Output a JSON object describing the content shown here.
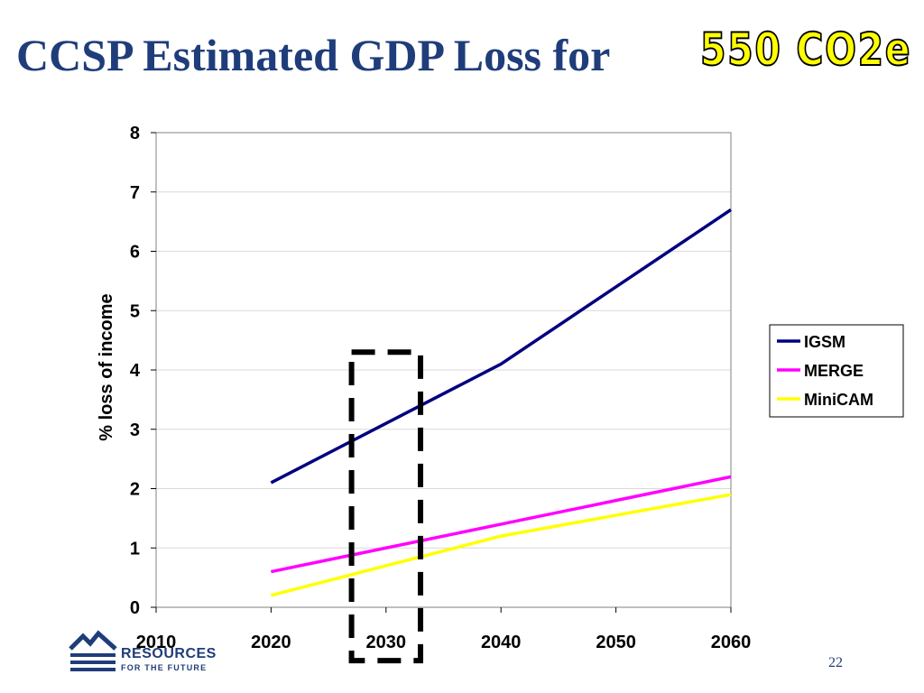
{
  "slide": {
    "title": "CCSP Estimated GDP Loss for",
    "title_highlight": "550 CO2e",
    "page_number": "22"
  },
  "logo": {
    "line1": "RESOURCES",
    "line2": "FOR THE FUTURE"
  },
  "colors": {
    "title": "#1f3d7a",
    "highlight_fill": "#ffff00",
    "highlight_outline": "#000000",
    "gridline": "#d9d9d9",
    "plot_border": "#808080"
  },
  "chart_data": {
    "type": "line",
    "title": "",
    "xlabel": "",
    "ylabel": "% loss of income",
    "xlim": [
      2010,
      2060
    ],
    "ylim": [
      0,
      8
    ],
    "xticks": [
      2010,
      2020,
      2030,
      2040,
      2050,
      2060
    ],
    "yticks": [
      0,
      1,
      2,
      3,
      4,
      5,
      6,
      7,
      8
    ],
    "grid": "horizontal",
    "legend": "right",
    "series": [
      {
        "name": "IGSM",
        "color": "#000080",
        "x": [
          2020,
          2030,
          2040,
          2050,
          2060
        ],
        "y": [
          2.1,
          3.1,
          4.1,
          5.4,
          6.7
        ]
      },
      {
        "name": "MERGE",
        "color": "#ff00ff",
        "x": [
          2020,
          2030,
          2040,
          2050,
          2060
        ],
        "y": [
          0.6,
          1.0,
          1.4,
          1.8,
          2.2
        ]
      },
      {
        "name": "MiniCAM",
        "color": "#ffff00",
        "x": [
          2020,
          2030,
          2040,
          2050,
          2060
        ],
        "y": [
          0.2,
          0.7,
          1.2,
          1.55,
          1.9
        ]
      }
    ],
    "annotations": [
      {
        "type": "dashed-box",
        "x_range": [
          2027,
          2033
        ],
        "y_range": [
          -0.9,
          4.3
        ],
        "color": "#000000"
      }
    ]
  }
}
